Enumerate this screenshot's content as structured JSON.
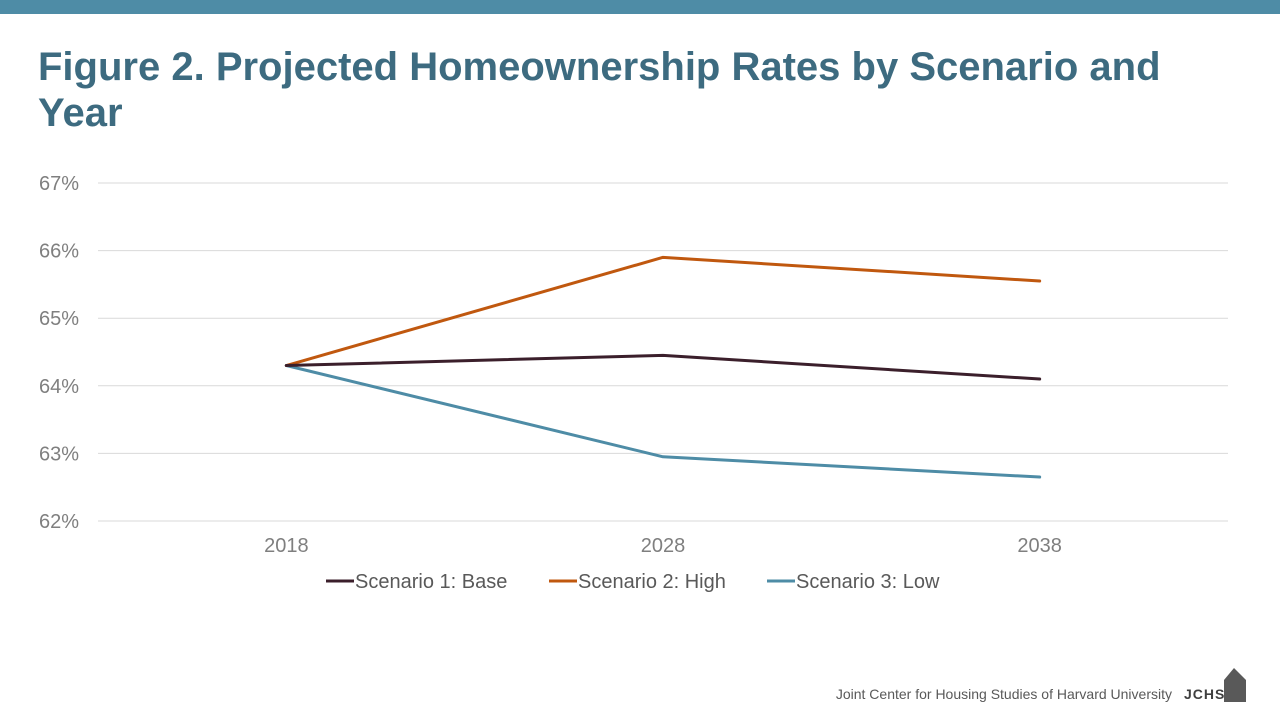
{
  "header": {
    "title": "Figure 2. Projected Homeownership Rates by Scenario and Year"
  },
  "footer": {
    "source": "Joint Center for Housing Studies of Harvard University",
    "logo_text": "JCHS"
  },
  "colors": {
    "accent_bar": "#4e8ca6",
    "title": "#3d6b80",
    "grid": "#d9d9d9",
    "logo": "#595959"
  },
  "chart_data": {
    "type": "line",
    "title": "",
    "xlabel": "",
    "ylabel": "",
    "categories": [
      "2018",
      "2028",
      "2038"
    ],
    "ylim": [
      62,
      67
    ],
    "yticks": [
      "62%",
      "63%",
      "64%",
      "65%",
      "66%",
      "67%"
    ],
    "grid": true,
    "legend_position": "bottom",
    "series": [
      {
        "name": "Scenario 1: Base",
        "color": "#3b1f2b",
        "values": [
          64.3,
          64.45,
          64.1
        ]
      },
      {
        "name": "Scenario 2: High",
        "color": "#c0580f",
        "values": [
          64.3,
          65.9,
          65.55
        ]
      },
      {
        "name": "Scenario 3: Low",
        "color": "#4e8ca6",
        "values": [
          64.3,
          62.95,
          62.65
        ]
      }
    ]
  }
}
